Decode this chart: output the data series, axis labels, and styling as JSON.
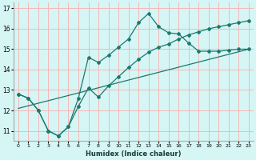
{
  "xlabel": "Humidex (Indice chaleur)",
  "bg_color": "#d6f5f5",
  "grid_color": "#f5b8b8",
  "line_color": "#1a7a6e",
  "xlim": [
    -0.5,
    23.5
  ],
  "ylim": [
    10.5,
    17.3
  ],
  "yticks": [
    11,
    12,
    13,
    14,
    15,
    16,
    17
  ],
  "xticks": [
    0,
    1,
    2,
    3,
    4,
    5,
    6,
    7,
    8,
    9,
    10,
    11,
    12,
    13,
    14,
    15,
    16,
    17,
    18,
    19,
    20,
    21,
    22,
    23
  ],
  "line1_x": [
    0,
    1,
    2,
    3,
    4,
    5,
    6,
    7,
    8,
    9,
    10,
    11,
    12,
    13,
    14,
    15,
    16,
    17,
    18,
    19,
    20,
    21,
    22,
    23
  ],
  "line1_y": [
    12.8,
    12.6,
    12.0,
    11.0,
    10.75,
    11.2,
    12.6,
    14.6,
    14.35,
    14.7,
    15.1,
    15.5,
    16.3,
    16.75,
    16.1,
    15.8,
    15.75,
    15.3,
    14.9,
    14.9,
    14.9,
    14.95,
    15.0,
    15.0
  ],
  "line2_x": [
    0,
    1,
    2,
    3,
    4,
    5,
    6,
    7,
    8,
    9,
    10,
    11,
    12,
    13,
    14,
    15,
    16,
    17,
    18,
    19,
    20,
    21,
    22,
    23
  ],
  "line2_y": [
    12.8,
    12.6,
    12.0,
    11.0,
    10.75,
    11.2,
    12.2,
    13.1,
    12.65,
    13.2,
    13.65,
    14.1,
    14.5,
    14.85,
    15.1,
    15.25,
    15.5,
    15.7,
    15.85,
    16.0,
    16.1,
    16.2,
    16.3,
    16.4
  ],
  "line3_x": [
    0,
    23
  ],
  "line3_y": [
    12.1,
    15.0
  ]
}
